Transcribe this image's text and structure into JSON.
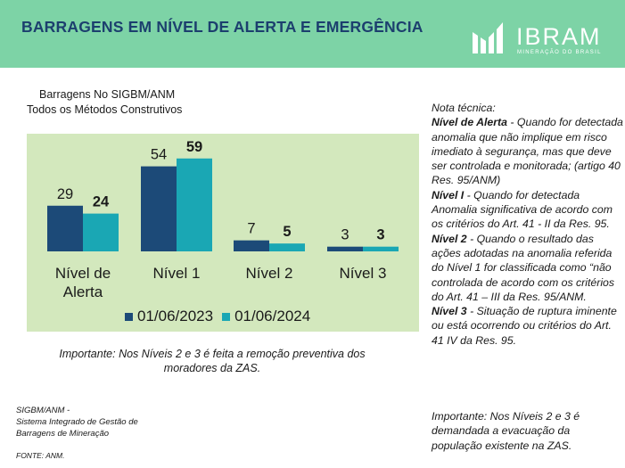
{
  "header": {
    "title": "BARRAGENS EM NÍVEL DE ALERTA E EMERGÊNCIA",
    "logo_text": "IBRAM",
    "logo_subtext": "MINERAÇÃO DO BRASIL"
  },
  "colors": {
    "header_bg": "#7dd3a6",
    "title": "#1c3f6e",
    "chart_bg": "#d3e8bd",
    "series_2023": "#1c4a78",
    "series_2024": "#1aa7b4"
  },
  "chart_data": {
    "type": "bar",
    "subtitle_lines": [
      "Barragens No SIGBM/ANM",
      "Todos os Métodos Construtivos"
    ],
    "categories": [
      [
        "Nível de",
        "Alerta"
      ],
      [
        "Nível 1"
      ],
      [
        "Nível 2"
      ],
      [
        "Nível 3"
      ]
    ],
    "series": [
      {
        "name": "01/06/2023",
        "values": [
          29,
          54,
          7,
          3
        ],
        "color": "#1c4a78"
      },
      {
        "name": "01/06/2024",
        "values": [
          24,
          59,
          5,
          3
        ],
        "color": "#1aa7b4"
      }
    ],
    "ylim": [
      0,
      60
    ],
    "grid": false,
    "legend_position": "bottom",
    "data_labels": true
  },
  "important_left": "Importante: Nos Níveis 2 e 3 é feita a remoção preventiva dos moradores da ZAS.",
  "source": {
    "line1": "SIGBM/ANM -",
    "line2": "Sistema Integrado de Gestão de",
    "line3": "Barragens de Mineração",
    "fonte": "FONTE: ANM."
  },
  "notes": {
    "heading": "Nota técnica:",
    "items": [
      {
        "term": "Nível de Alerta",
        "text": " - Quando for detectada anomalia que não implique em risco imediato à segurança, mas que deve ser controlada e monitorada; (artigo 40 Res. 95/ANM)"
      },
      {
        "term": "Nível I",
        "text": " - Quando for detectada Anomalia significativa de acordo com os critérios do Art. 41 - II da Res. 95."
      },
      {
        "term": "Nível 2",
        "text": "  - Quando o resultado das ações adotadas na anomalia referida do Nível 1 for classificada como “não controlada de acordo com os critérios do Art. 41 – III da Res. 95/ANM."
      },
      {
        "term": "Nível 3",
        "text": " - Situação de ruptura iminente ou está ocorrendo ou critérios do Art. 41 IV da Res. 95."
      }
    ],
    "important": "Importante: Nos Níveis 2 e 3 é demandada a evacuação da população existente na ZAS."
  }
}
